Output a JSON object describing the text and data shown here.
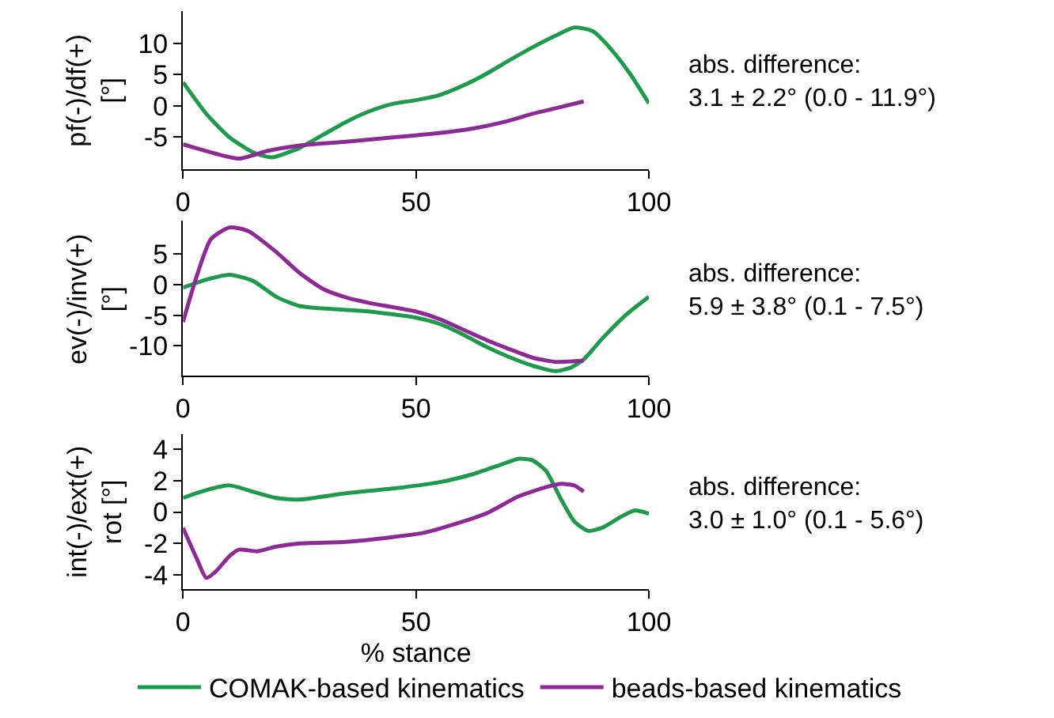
{
  "chart_data": [
    {
      "type": "line",
      "ylabel": "pf(-)/df(+)\n[°]",
      "xlim": [
        0,
        100
      ],
      "xticks": [
        0,
        50,
        100
      ],
      "ylim": [
        -10.2,
        15.3
      ],
      "yticks": [
        -5,
        0,
        5,
        10
      ],
      "legend": false,
      "annotations": [
        "abs. difference:\n3.1 ± 2.2° (0.0 - 11.9°)"
      ],
      "series": [
        {
          "color": "#1e9a4c",
          "x": [
            0,
            5,
            10,
            15,
            19,
            25,
            30,
            35,
            40,
            45,
            50,
            55,
            60,
            65,
            70,
            75,
            80,
            84,
            88,
            92,
            96,
            100
          ],
          "values": [
            3.8,
            -1.3,
            -5.1,
            -7.5,
            -8.3,
            -6.8,
            -4.7,
            -2.6,
            -0.9,
            0.3,
            0.9,
            1.7,
            3.2,
            5.1,
            7.3,
            9.4,
            11.3,
            12.6,
            12.0,
            9.0,
            5.1,
            0.4
          ]
        },
        {
          "color": "#8e2a96",
          "x": [
            0,
            5,
            12,
            18,
            25,
            35,
            45,
            55,
            62,
            70,
            75,
            80,
            86
          ],
          "values": [
            -6.2,
            -7.3,
            -8.5,
            -7.3,
            -6.4,
            -5.8,
            -5.1,
            -4.4,
            -3.7,
            -2.4,
            -1.3,
            -0.4,
            0.7
          ]
        }
      ]
    },
    {
      "type": "line",
      "ylabel": "ev(-)/inv(+)\n[°]",
      "xlim": [
        0,
        100
      ],
      "xticks": [
        0,
        50,
        100
      ],
      "ylim": [
        -14.8,
        10.4
      ],
      "yticks": [
        -10,
        -5,
        0,
        5
      ],
      "legend": false,
      "annotations": [
        "abs. difference:\n5.9 ± 3.8° (0.1 - 7.5°)"
      ],
      "series": [
        {
          "color": "#1e9a4c",
          "x": [
            0,
            5,
            10,
            15,
            20,
            25,
            30,
            40,
            50,
            55,
            60,
            65,
            70,
            75,
            80,
            83,
            86,
            90,
            95,
            100
          ],
          "values": [
            -0.5,
            0.8,
            1.6,
            0.6,
            -2.0,
            -3.5,
            -3.9,
            -4.4,
            -5.4,
            -6.4,
            -8.1,
            -10.1,
            -11.8,
            -13.2,
            -14.1,
            -13.6,
            -12.2,
            -8.8,
            -5.0,
            -2.0
          ]
        },
        {
          "color": "#8e2a96",
          "x": [
            0,
            3,
            6,
            10,
            14,
            20,
            25,
            30,
            35,
            40,
            50,
            55,
            60,
            65,
            70,
            75,
            80,
            86
          ],
          "values": [
            -6.1,
            1.5,
            7.4,
            9.3,
            8.7,
            5.3,
            1.9,
            -0.7,
            -2.1,
            -3.0,
            -4.4,
            -5.6,
            -7.3,
            -9.0,
            -10.5,
            -11.9,
            -12.6,
            -12.4
          ]
        }
      ]
    },
    {
      "type": "line",
      "ylabel": "int(-)/ext(+)\nrot [°]",
      "xlabel": "% stance",
      "xlim": [
        0,
        100
      ],
      "xticks": [
        0,
        50,
        100
      ],
      "ylim": [
        -4.9,
        4.97
      ],
      "yticks": [
        -4,
        -2,
        0,
        2,
        4
      ],
      "legend": "bottom",
      "annotations": [
        "abs. difference:\n3.0 ± 1.0° (0.1 - 5.6°)"
      ],
      "series": [
        {
          "name": "COMAK-based kinematics",
          "color": "#1e9a4c",
          "x": [
            0,
            5,
            10,
            15,
            20,
            25,
            35,
            45,
            55,
            62,
            68,
            72,
            75,
            78,
            81,
            84,
            87,
            90,
            94,
            97,
            100
          ],
          "values": [
            0.9,
            1.4,
            1.7,
            1.3,
            0.9,
            0.8,
            1.2,
            1.5,
            1.9,
            2.4,
            3.0,
            3.4,
            3.3,
            2.6,
            0.9,
            -0.6,
            -1.2,
            -1.0,
            -0.3,
            0.1,
            -0.1
          ]
        },
        {
          "name": "beads-based kinematics",
          "color": "#8e2a96",
          "x": [
            0,
            3,
            5,
            7,
            10,
            12,
            16,
            20,
            25,
            35,
            45,
            52,
            58,
            65,
            72,
            78,
            81,
            84,
            86
          ],
          "values": [
            -1.0,
            -3.0,
            -4.2,
            -3.8,
            -2.8,
            -2.4,
            -2.5,
            -2.2,
            -2.0,
            -1.9,
            -1.6,
            -1.3,
            -0.8,
            -0.1,
            1.0,
            1.6,
            1.8,
            1.7,
            1.3
          ]
        }
      ]
    }
  ]
}
